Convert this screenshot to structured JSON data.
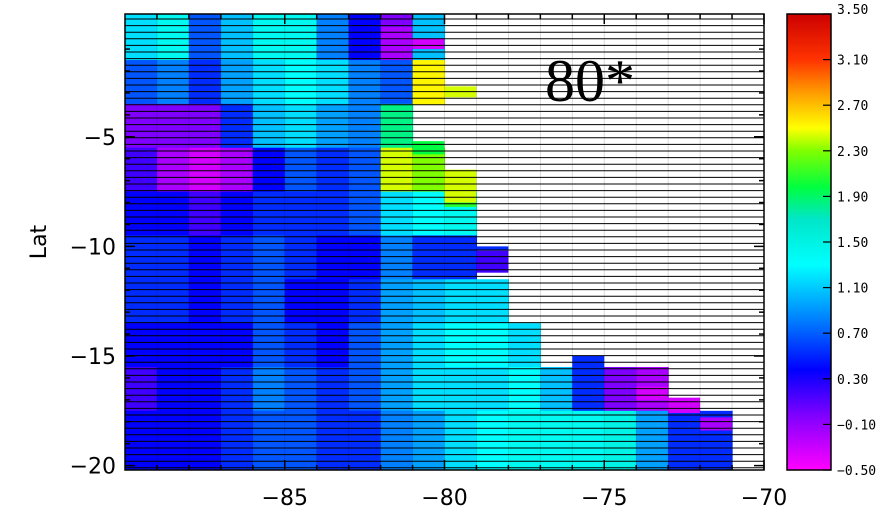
{
  "chart_data": {
    "type": "heatmap",
    "ylabel": "Lat",
    "xlim": [
      -90,
      -70
    ],
    "ylim": [
      -20.2,
      0.6
    ],
    "x_ticks": [
      -85,
      -80,
      -75,
      -70
    ],
    "y_ticks": [
      -5,
      -10,
      -15,
      -20
    ],
    "x_tick_labels": [
      "−85",
      "−80",
      "−75",
      "−70"
    ],
    "y_tick_labels": [
      "−5",
      "−10",
      "−15",
      "−20"
    ],
    "annotation": "80*",
    "colorbar": {
      "range": [
        -0.5,
        3.5
      ],
      "tick_labels": [
        "3.50",
        "3.10",
        "2.70",
        "2.30",
        "1.90",
        "1.50",
        "1.10",
        "0.70",
        "0.30",
        "−0.10",
        "−0.50"
      ]
    },
    "cell_width_deg": 1.0,
    "cell_height_deg": 2.0,
    "lon_centers": [
      -89.5,
      -88.5,
      -87.5,
      -86.5,
      -85.5,
      -84.5,
      -83.5,
      -82.5,
      -81.5,
      -80.5,
      -79.5,
      -78.5,
      -77.5,
      -76.5,
      -75.5,
      -74.5,
      -73.5,
      -72.5,
      -71.5
    ],
    "lat_centers": [
      -0.5,
      -2.5,
      -4.5,
      -6.5,
      -8.5,
      -10.5,
      -12.5,
      -14.5,
      -16.5,
      -18.5
    ],
    "values": [
      [
        0.6,
        0.8,
        0.2,
        0.5,
        0.8,
        0.8,
        0.3,
        0.0,
        -0.3,
        0.5,
        null,
        null,
        null,
        null,
        null,
        null,
        null,
        null,
        null
      ],
      [
        0.2,
        0.3,
        0.1,
        0.4,
        0.6,
        0.7,
        0.6,
        0.3,
        0.2,
        2.0,
        null,
        null,
        null,
        null,
        null,
        null,
        null,
        null,
        null
      ],
      [
        -0.2,
        -0.2,
        -0.2,
        0.1,
        0.5,
        0.6,
        0.4,
        0.3,
        1.3,
        null,
        null,
        null,
        null,
        null,
        null,
        null,
        null,
        null,
        null
      ],
      [
        -0.1,
        -0.3,
        -0.4,
        -0.3,
        0.0,
        0.2,
        0.1,
        0.2,
        1.9,
        1.8,
        null,
        null,
        null,
        null,
        null,
        null,
        null,
        null,
        null
      ],
      [
        0.0,
        0.0,
        -0.1,
        0.0,
        0.1,
        0.1,
        0.1,
        0.2,
        0.6,
        0.7,
        0.8,
        null,
        null,
        null,
        null,
        null,
        null,
        null,
        null
      ],
      [
        0.1,
        0.1,
        0.0,
        0.1,
        0.2,
        0.1,
        0.0,
        0.0,
        0.3,
        0.1,
        0.1,
        null,
        null,
        null,
        null,
        null,
        null,
        null,
        null
      ],
      [
        0.1,
        0.1,
        0.0,
        0.1,
        0.2,
        0.0,
        0.0,
        0.1,
        0.4,
        0.5,
        0.6,
        0.6,
        null,
        null,
        null,
        null,
        null,
        null,
        null
      ],
      [
        0.0,
        0.0,
        0.0,
        0.0,
        0.2,
        0.1,
        0.0,
        0.2,
        0.4,
        0.6,
        0.7,
        0.7,
        0.6,
        null,
        null,
        null,
        null,
        null,
        null
      ],
      [
        -0.1,
        0.0,
        0.0,
        0.1,
        0.3,
        0.2,
        0.1,
        0.2,
        0.4,
        0.6,
        0.6,
        0.6,
        0.7,
        0.5,
        0.1,
        -0.2,
        -0.3,
        null,
        null
      ],
      [
        0.0,
        0.0,
        0.0,
        0.1,
        0.2,
        0.2,
        0.1,
        0.1,
        0.3,
        0.4,
        0.6,
        0.7,
        0.8,
        0.8,
        0.8,
        0.9,
        0.4,
        0.1,
        0.1
      ]
    ],
    "overrides": [
      {
        "lon": -81.5,
        "lat_top": 0.6,
        "lat_bot": 0.0,
        "value": -0.2
      },
      {
        "lon": -80.5,
        "lat_top": -0.5,
        "lat_bot": -1.0,
        "value": -0.4
      },
      {
        "lon": -79.5,
        "lat_top": -2.7,
        "lat_bot": -3.2,
        "value": 1.9
      },
      {
        "lon": -80.5,
        "lat_top": -5.2,
        "lat_bot": -5.8,
        "value": 1.5
      },
      {
        "lon": -79.5,
        "lat_top": -6.5,
        "lat_bot": -8.0,
        "value": 1.9
      },
      {
        "lon": -79.5,
        "lat_top": -8.0,
        "lat_bot": -8.2,
        "value": 1.6
      },
      {
        "lon": -78.5,
        "lat_top": -10.0,
        "lat_bot": -10.2,
        "value": 0.1
      },
      {
        "lon": -78.5,
        "lat_top": -10.2,
        "lat_bot": -11.2,
        "value": -0.1
      },
      {
        "lon": -75.5,
        "lat_top": -15.0,
        "lat_bot": -16.0,
        "value": 0.1
      },
      {
        "lon": -74.5,
        "lat_top": -15.9,
        "lat_bot": -16.7,
        "value": -0.2
      },
      {
        "lon": -73.5,
        "lat_top": -16.4,
        "lat_bot": -17.0,
        "value": -0.4
      },
      {
        "lon": -72.5,
        "lat_top": -16.9,
        "lat_bot": -17.6,
        "value": -0.4
      },
      {
        "lon": -71.5,
        "lat_top": -17.8,
        "lat_bot": -18.4,
        "value": -0.3
      }
    ]
  }
}
